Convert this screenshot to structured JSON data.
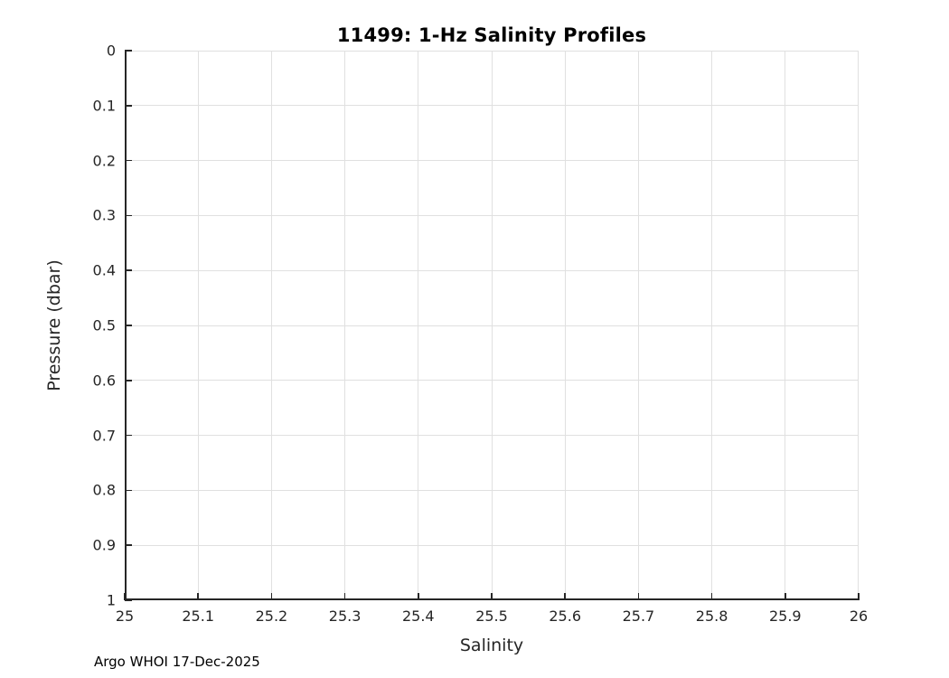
{
  "chart_data": {
    "type": "line",
    "title": "11499: 1-Hz Salinity Profiles",
    "xlabel": "Salinity",
    "ylabel": "Pressure (dbar)",
    "xlim": [
      25,
      26
    ],
    "ylim": [
      0,
      1
    ],
    "y_direction": "reverse",
    "grid": true,
    "x_tick_values": [
      25,
      25.1,
      25.2,
      25.3,
      25.4,
      25.5,
      25.6,
      25.7,
      25.8,
      25.9,
      26
    ],
    "x_tick_labels": [
      "25",
      "25.1",
      "25.2",
      "25.3",
      "25.4",
      "25.5",
      "25.6",
      "25.7",
      "25.8",
      "25.9",
      "26"
    ],
    "y_tick_values": [
      0,
      0.1,
      0.2,
      0.3,
      0.4,
      0.5,
      0.6,
      0.7,
      0.8,
      0.9,
      1
    ],
    "y_tick_labels": [
      "0",
      "0.1",
      "0.2",
      "0.3",
      "0.4",
      "0.5",
      "0.6",
      "0.7",
      "0.8",
      "0.9",
      "1"
    ],
    "series": [],
    "axis_color": "#262626",
    "grid_color": "#e0e0e0",
    "background_color": "#ffffff",
    "footer": "Argo WHOI 17-Dec-2025"
  }
}
